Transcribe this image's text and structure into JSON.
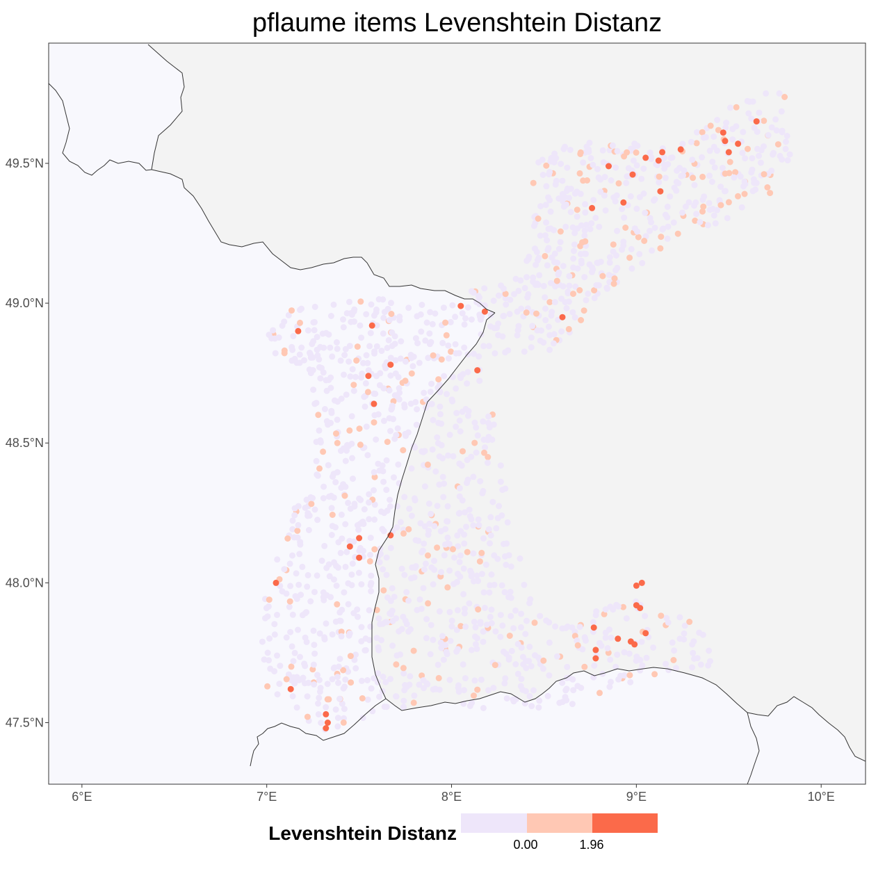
{
  "title": "pflaume items Levenshtein Distanz",
  "colors": {
    "panel_bg": "#F8F8FD",
    "land_east": "#F3F3F3",
    "border": "#333333",
    "low": "#EEE6FA",
    "mid": "#FFC8B4",
    "high": "#FB6A4A"
  },
  "chart_data": {
    "type": "scatter",
    "xlim": [
      5.82,
      10.24
    ],
    "ylim": [
      47.28,
      49.93
    ],
    "x_ticks": [
      {
        "value": 6,
        "label": "6°E"
      },
      {
        "value": 7,
        "label": "7°E"
      },
      {
        "value": 8,
        "label": "8°E"
      },
      {
        "value": 9,
        "label": "9°E"
      },
      {
        "value": 10,
        "label": "10°E"
      }
    ],
    "y_ticks": [
      {
        "value": 47.5,
        "label": "47.5°N"
      },
      {
        "value": 48.0,
        "label": "48.0°N"
      },
      {
        "value": 48.5,
        "label": "48.5°N"
      },
      {
        "value": 49.0,
        "label": "49.0°N"
      },
      {
        "value": 49.5,
        "label": "49.5°N"
      }
    ],
    "legend": {
      "title": "Levenshtein Distanz",
      "placement": "bottom",
      "labels": [
        "0.00",
        "1.96"
      ]
    },
    "highlight_points": [
      [
        7.17,
        48.9
      ],
      [
        7.57,
        48.92
      ],
      [
        7.67,
        48.78
      ],
      [
        7.55,
        48.74
      ],
      [
        7.58,
        48.64
      ],
      [
        8.05,
        48.99
      ],
      [
        8.18,
        48.97
      ],
      [
        8.14,
        48.76
      ],
      [
        7.5,
        48.16
      ],
      [
        7.45,
        48.13
      ],
      [
        7.67,
        48.17
      ],
      [
        7.5,
        48.09
      ],
      [
        7.05,
        48.0
      ],
      [
        7.13,
        47.62
      ],
      [
        7.32,
        47.53
      ],
      [
        7.33,
        47.5
      ],
      [
        7.32,
        47.48
      ],
      [
        8.6,
        48.95
      ],
      [
        8.76,
        49.34
      ],
      [
        8.85,
        49.49
      ],
      [
        8.93,
        49.36
      ],
      [
        8.98,
        49.46
      ],
      [
        9.05,
        49.52
      ],
      [
        9.12,
        49.51
      ],
      [
        9.14,
        49.54
      ],
      [
        9.13,
        49.4
      ],
      [
        9.24,
        49.55
      ],
      [
        9.47,
        49.61
      ],
      [
        9.48,
        49.58
      ],
      [
        9.55,
        49.57
      ],
      [
        9.5,
        49.54
      ],
      [
        9.65,
        49.65
      ],
      [
        9.0,
        47.99
      ],
      [
        9.03,
        48.0
      ],
      [
        9.0,
        47.92
      ],
      [
        9.02,
        47.91
      ],
      [
        9.05,
        47.82
      ],
      [
        8.77,
        47.84
      ],
      [
        8.78,
        47.76
      ],
      [
        8.78,
        47.73
      ],
      [
        8.9,
        47.8
      ],
      [
        8.97,
        47.79
      ],
      [
        8.99,
        47.78
      ]
    ]
  }
}
